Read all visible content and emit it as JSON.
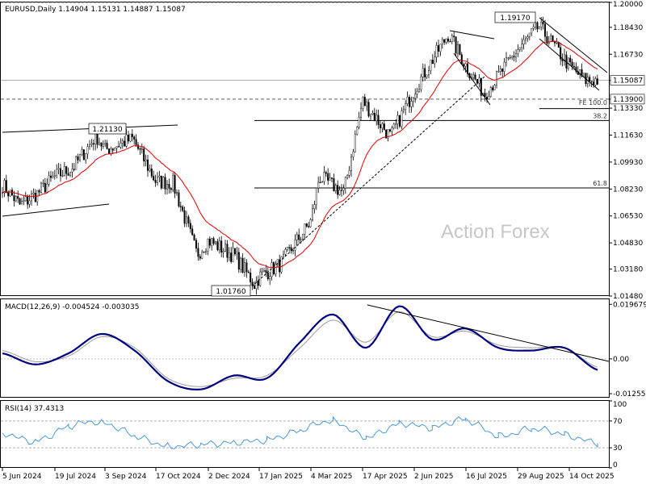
{
  "header": {
    "symbol_line": "EURUSD,Daily  1.14904 1.15131 1.14887 1.15087"
  },
  "watermark": "Action Forex",
  "colors": {
    "candle": "#000000",
    "ma": "#e00000",
    "macd_main": "#000080",
    "macd_signal": "#9a9a9a",
    "rsi": "#3a8fd6",
    "trendline": "#000000",
    "grid_dash": "#606060"
  },
  "price_annotations": {
    "high_label": "1.19170",
    "low_label": "1.01760",
    "swing_label": "1.21130",
    "current_price_label": "1.15087",
    "fe_level_label": "1.13900",
    "fe_text": "FE 100.0",
    "fib_382": "38.2",
    "fib_618": "61.8"
  },
  "chart_data": [
    {
      "type": "candlestick",
      "name": "EURUSD Daily",
      "ylim": [
        1.0148,
        1.2
      ],
      "ytick_labels": [
        "1.20000",
        "1.18430",
        "1.16730",
        "1.15087",
        "1.13900",
        "1.13330",
        "1.11630",
        "1.09930",
        "1.08230",
        "1.06530",
        "1.04830",
        "1.03180",
        "1.01480"
      ],
      "ytick_values": [
        1.2,
        1.1843,
        1.1673,
        1.15087,
        1.139,
        1.1333,
        1.1163,
        1.0993,
        1.0823,
        1.0653,
        1.0483,
        1.0318,
        1.0148
      ],
      "x_dates": [
        "5 Jun 2024",
        "19 Jul 2024",
        "3 Sep 2024",
        "17 Oct 2024",
        "2 Dec 2024",
        "17 Jan 2025",
        "4 Mar 2025",
        "17 Apr 2025",
        "2 Jun 2025",
        "16 Jul 2025",
        "29 Aug 2025",
        "14 Oct 2025"
      ],
      "close_path": [
        [
          "5 Jun 2024",
          1.085
        ],
        [
          "20 Jun 2024",
          1.072
        ],
        [
          "5 Jul 2024",
          1.08
        ],
        [
          "19 Jul 2024",
          1.09
        ],
        [
          "5 Aug 2024",
          1.096
        ],
        [
          "26 Aug 2024",
          1.116
        ],
        [
          "3 Sep 2024",
          1.107
        ],
        [
          "27 Sep 2024",
          1.114
        ],
        [
          "17 Oct 2024",
          1.087
        ],
        [
          "1 Nov 2024",
          1.086
        ],
        [
          "22 Nov 2024",
          1.041
        ],
        [
          "2 Dec 2024",
          1.05
        ],
        [
          "26 Dec 2024",
          1.04
        ],
        [
          "13 Jan 2025",
          1.022
        ],
        [
          "17 Jan 2025",
          1.027
        ],
        [
          "5 Feb 2025",
          1.035
        ],
        [
          "4 Mar 2025",
          1.062
        ],
        [
          "11 Mar 2025",
          1.09
        ],
        [
          "1 Apr 2025",
          1.08
        ],
        [
          "17 Apr 2025",
          1.138
        ],
        [
          "12 May 2025",
          1.115
        ],
        [
          "2 Jun 2025",
          1.145
        ],
        [
          "1 Jul 2025",
          1.18
        ],
        [
          "16 Jul 2025",
          1.16
        ],
        [
          "1 Aug 2025",
          1.142
        ],
        [
          "29 Aug 2025",
          1.17
        ],
        [
          "17 Sep 2025",
          1.185
        ],
        [
          "14 Oct 2025",
          1.16
        ],
        [
          "28 Oct 2025",
          1.151
        ]
      ],
      "moving_average_label": "",
      "annotations": [
        "1.19170",
        "1.01760",
        "1.21130",
        "FE 100.0",
        "38.2",
        "61.8"
      ]
    },
    {
      "type": "line",
      "name": "MACD(12,26,9) -0.004524 -0.003035",
      "ylim": [
        -0.014,
        0.0215
      ],
      "ytick_labels": [
        "0.019679",
        "0.00",
        "-0.012552"
      ],
      "ytick_values": [
        0.019679,
        0.0,
        -0.012552
      ],
      "series": [
        {
          "name": "MACD",
          "values": [
            0.002,
            -0.002,
            0.002,
            0.009,
            0.003,
            -0.008,
            -0.011,
            -0.006,
            -0.007,
            0.006,
            0.016,
            0.004,
            0.019,
            0.007,
            0.011,
            0.004,
            0.003,
            0.004,
            -0.004
          ]
        },
        {
          "name": "Signal",
          "values": [
            0.003,
            -0.001,
            0.001,
            0.008,
            0.004,
            -0.007,
            -0.01,
            -0.007,
            -0.006,
            0.004,
            0.014,
            0.006,
            0.017,
            0.008,
            0.01,
            0.005,
            0.004,
            0.004,
            -0.003
          ]
        }
      ]
    },
    {
      "type": "line",
      "name": "RSI(14) 37.4313",
      "ylim": [
        0,
        100
      ],
      "ytick_labels": [
        "100",
        "70",
        "30",
        "0"
      ],
      "ytick_values": [
        100,
        70,
        30,
        0
      ],
      "series": [
        {
          "name": "RSI",
          "values": [
            52,
            40,
            62,
            68,
            48,
            33,
            35,
            38,
            42,
            56,
            70,
            46,
            66,
            60,
            72,
            48,
            58,
            50,
            37
          ]
        }
      ]
    }
  ]
}
